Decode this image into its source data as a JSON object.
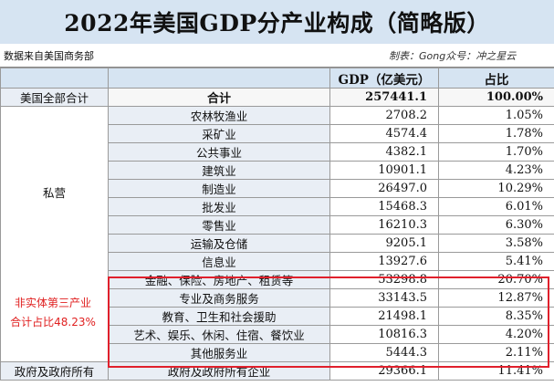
{
  "title": "2022年美国GDP分产业构成（简略版）",
  "source": "数据来自美国商务部",
  "credit": "制表：Gong众号：冲之星云",
  "header": {
    "gdp": "GDP（亿美元）",
    "share": "占比"
  },
  "total": {
    "category": "美国全部合计",
    "label": "合计",
    "gdp": "257441.1",
    "share": "100.00%"
  },
  "private": {
    "category": "私营",
    "rows": [
      {
        "name": "农林牧渔业",
        "gdp": "2708.2",
        "share": "1.05%"
      },
      {
        "name": "采矿业",
        "gdp": "4574.4",
        "share": "1.78%"
      },
      {
        "name": "公共事业",
        "gdp": "4382.1",
        "share": "1.70%"
      },
      {
        "name": "建筑业",
        "gdp": "10901.1",
        "share": "4.23%"
      },
      {
        "name": "制造业",
        "gdp": "26497.0",
        "share": "10.29%"
      },
      {
        "name": "批发业",
        "gdp": "15468.3",
        "share": "6.01%"
      },
      {
        "name": "零售业",
        "gdp": "16210.3",
        "share": "6.30%"
      },
      {
        "name": "运输及仓储",
        "gdp": "9205.1",
        "share": "3.58%"
      },
      {
        "name": "信息业",
        "gdp": "13927.6",
        "share": "5.41%"
      },
      {
        "name": "金融、保险、房地产、租赁等",
        "gdp": "53298.8",
        "share": "20.70%"
      },
      {
        "name": "专业及商务服务",
        "gdp": "33143.5",
        "share": "12.87%"
      },
      {
        "name": "教育、卫生和社会援助",
        "gdp": "21498.1",
        "share": "8.35%"
      },
      {
        "name": "艺术、娱乐、休闲、住宿、餐饮业",
        "gdp": "10816.3",
        "share": "4.20%"
      },
      {
        "name": "其他服务业",
        "gdp": "5444.3",
        "share": "2.11%"
      }
    ]
  },
  "government": {
    "category": "政府及政府所有",
    "name": "政府及政府所有企业",
    "gdp": "29366.1",
    "share": "11.41%"
  },
  "note": {
    "line1": "非实体第三产业",
    "line2": "合计占比48.23%"
  },
  "colors": {
    "header_bg": "#d6e4f2",
    "note_red": "#e02020",
    "highlight_border": "#e0202c"
  }
}
